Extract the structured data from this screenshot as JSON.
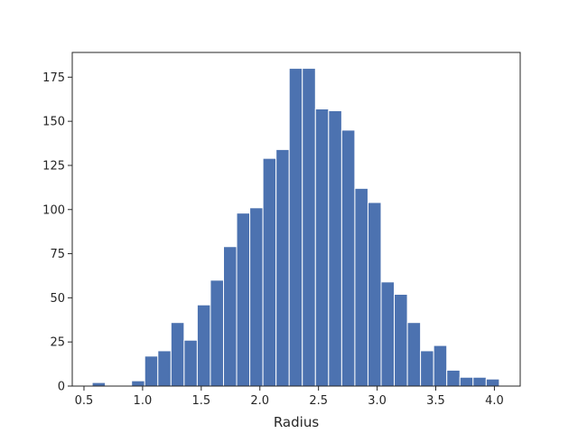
{
  "chart_data": {
    "type": "bar",
    "subtype": "histogram",
    "title": "",
    "xlabel": "Radius",
    "ylabel": "",
    "xlim": [
      0.4,
      4.22
    ],
    "ylim": [
      0,
      189
    ],
    "bar_color": "#4c72b0",
    "edge_color": "#ffffff",
    "grid": false,
    "legend": "none",
    "xticks": [
      0.5,
      1.0,
      1.5,
      2.0,
      2.5,
      3.0,
      3.5,
      4.0
    ],
    "xtick_labels": [
      "0.5",
      "1.0",
      "1.5",
      "2.0",
      "2.5",
      "3.0",
      "3.5",
      "4.0"
    ],
    "yticks": [
      0,
      25,
      50,
      75,
      100,
      125,
      150,
      175
    ],
    "ytick_labels": [
      "0",
      "25",
      "50",
      "75",
      "100",
      "125",
      "150",
      "175"
    ],
    "bin_edges": [
      0.57,
      0.682,
      0.794,
      0.906,
      1.018,
      1.13,
      1.242,
      1.354,
      1.466,
      1.578,
      1.69,
      1.802,
      1.914,
      2.026,
      2.138,
      2.25,
      2.362,
      2.474,
      2.586,
      2.698,
      2.81,
      2.922,
      3.034,
      3.146,
      3.258,
      3.37,
      3.482,
      3.594,
      3.706,
      3.818,
      3.93,
      4.042
    ],
    "values": [
      2,
      0,
      0,
      3,
      17,
      20,
      36,
      26,
      46,
      60,
      79,
      98,
      101,
      129,
      134,
      180,
      180,
      157,
      156,
      145,
      112,
      104,
      59,
      52,
      36,
      20,
      23,
      9,
      5,
      5,
      4
    ]
  }
}
